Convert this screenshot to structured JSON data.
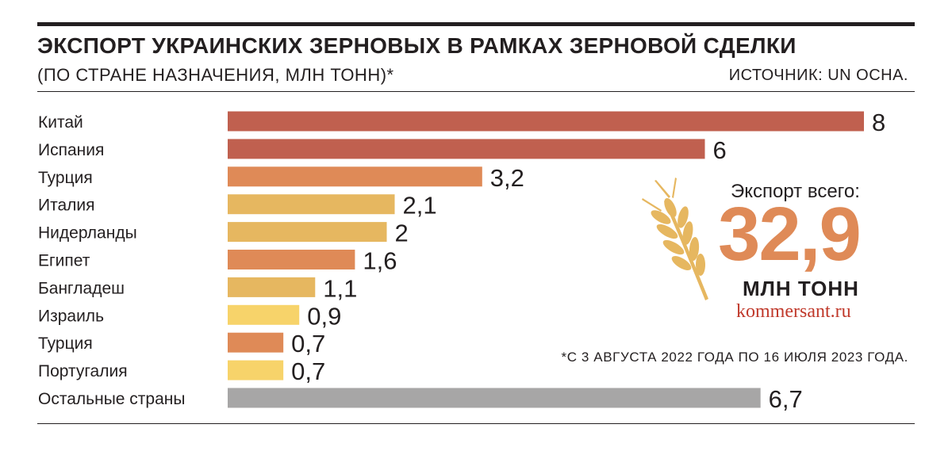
{
  "header": {
    "title": "ЭКСПОРТ УКРАИНСКИХ ЗЕРНОВЫХ В РАМКАХ ЗЕРНОВОЙ СДЕЛКИ",
    "subtitle": "(ПО СТРАНЕ НАЗНАЧЕНИЯ, МЛН ТОНН)*",
    "source": "ИСТОЧНИК: UN OCHA."
  },
  "summary": {
    "label": "Экспорт всего:",
    "value": "32,9",
    "unit": "МЛН ТОНН",
    "site": "kommersant.ru",
    "footnote": "*С 3 АВГУСТА 2022 ГОДА ПО 16 ИЮЛЯ 2023 ГОДА."
  },
  "colors": {
    "dark_red": "#c0604f",
    "orange": "#df8a57",
    "gold": "#e6b760",
    "yellow": "#f7d36a",
    "gray": "#a7a6a6",
    "text": "#231f20"
  },
  "chart_data": {
    "type": "bar",
    "orientation": "horizontal",
    "categories": [
      "Китай",
      "Испания",
      "Турция",
      "Италия",
      "Нидерланды",
      "Египет",
      "Бангладеш",
      "Израиль",
      "Турция",
      "Португалия",
      "Остальные страны"
    ],
    "values": [
      8,
      6,
      3.2,
      2.1,
      2,
      1.6,
      1.1,
      0.9,
      0.7,
      0.7,
      6.7
    ],
    "value_labels": [
      "8",
      "6",
      "3,2",
      "2,1",
      "2",
      "1,6",
      "1,1",
      "0,9",
      "0,7",
      "0,7",
      "6,7"
    ],
    "bar_colors": [
      "#c0604f",
      "#c0604f",
      "#df8a57",
      "#e6b760",
      "#e6b760",
      "#df8a57",
      "#e6b760",
      "#f7d36a",
      "#df8a57",
      "#f7d36a",
      "#a7a6a6"
    ],
    "xlim": [
      0,
      8
    ],
    "grid": false,
    "legend": "none"
  }
}
